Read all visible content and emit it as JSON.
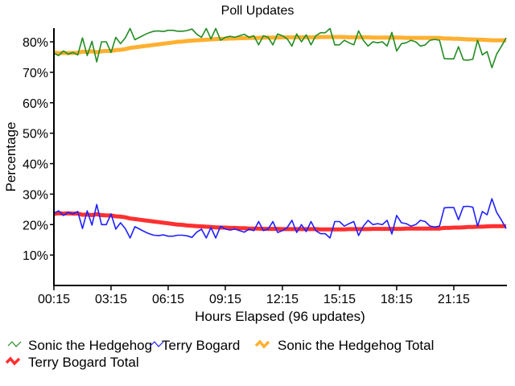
{
  "chart_data": {
    "type": "line",
    "title": "Poll Updates",
    "xlabel": "Hours Elapsed (96 updates)",
    "ylabel": "Percentage",
    "ylim": [
      0,
      84.5
    ],
    "yticks": [
      10,
      20,
      30,
      40,
      50,
      60,
      70,
      80
    ],
    "ytick_labels": [
      "10%",
      "20%",
      "30%",
      "40%",
      "50%",
      "60%",
      "70%",
      "80%"
    ],
    "xtick_labels": [
      "00:15",
      "03:15",
      "06:15",
      "09:15",
      "12:15",
      "15:15",
      "18:15",
      "21:15"
    ],
    "xtick_update_index": [
      0,
      12,
      24,
      36,
      48,
      60,
      72,
      84
    ],
    "grid": false,
    "legend_placement": "bottom",
    "series": [
      {
        "name": "Sonic the Hedgehog",
        "color": "#228B22",
        "values": [
          76.3,
          75.5,
          77,
          76,
          76.5,
          75.7,
          81.3,
          75.5,
          80.2,
          73.4,
          80,
          80,
          76.5,
          81.5,
          79.4,
          81.3,
          84.4,
          80.7,
          81.5,
          82.3,
          83,
          83.5,
          83.6,
          83.4,
          83.8,
          83.8,
          83.5,
          83.5,
          83.7,
          84.2,
          82.5,
          81.5,
          84.4,
          81,
          84.4,
          80.5,
          81.5,
          81.8,
          81.5,
          82,
          82.5,
          81.5,
          82,
          79,
          82,
          81.5,
          79,
          82.6,
          82,
          81,
          78.6,
          82.6,
          80,
          82.3,
          79,
          82,
          83,
          83,
          84.4,
          79,
          79,
          80.5,
          79.7,
          79,
          83.6,
          80.5,
          78.6,
          80,
          79.7,
          80,
          78.6,
          83.1,
          77,
          79.4,
          79.7,
          80.5,
          80,
          78.6,
          79,
          80.5,
          80.8,
          80.5,
          74.5,
          74.4,
          74.4,
          78.4,
          74.1,
          74,
          74.3,
          80.5,
          75.7,
          76.8,
          71.5,
          76,
          78.5,
          81.3
        ]
      },
      {
        "name": "Terry Bogard",
        "color": "#2020FF",
        "values": [
          23.7,
          24.5,
          23,
          24,
          23.5,
          24.3,
          18.7,
          24.5,
          19.8,
          26.6,
          20,
          20,
          23.5,
          18.5,
          20.6,
          18.7,
          15.6,
          19.3,
          18.5,
          17.7,
          17,
          16.5,
          16.4,
          16.6,
          16.2,
          16.2,
          16.5,
          16.5,
          16.3,
          15.8,
          17.5,
          18.5,
          15.6,
          19,
          15.6,
          19.5,
          18.5,
          18.2,
          18.5,
          18,
          17.5,
          18.5,
          18,
          21,
          18,
          18.5,
          21,
          17.4,
          18,
          19,
          21.4,
          17.4,
          20,
          17.7,
          21,
          18,
          17,
          17,
          15.6,
          21,
          21,
          19.5,
          20.3,
          21,
          16.4,
          19.5,
          21.4,
          20,
          20.3,
          20,
          21.4,
          16.9,
          23,
          20.6,
          20.3,
          19.5,
          20,
          21.4,
          21,
          19.5,
          19.2,
          19.5,
          25.5,
          25.6,
          25.6,
          21.6,
          25.9,
          26,
          25.7,
          19.5,
          24.3,
          23.2,
          28.5,
          24,
          21.5,
          18.7
        ]
      },
      {
        "name": "Sonic the Hedgehog Total",
        "color": "#FFB030",
        "values": [
          76.5,
          76.3,
          76.4,
          76.3,
          76.4,
          76.4,
          76.8,
          76.7,
          76.9,
          76.6,
          76.9,
          77.0,
          77.0,
          77.3,
          77.4,
          77.6,
          78.0,
          78.2,
          78.4,
          78.6,
          78.8,
          79.0,
          79.2,
          79.4,
          79.6,
          79.8,
          80.0,
          80.1,
          80.3,
          80.4,
          80.5,
          80.6,
          80.7,
          80.8,
          80.9,
          81.0,
          81.0,
          81.1,
          81.1,
          81.2,
          81.2,
          81.3,
          81.3,
          81.3,
          81.4,
          81.4,
          81.4,
          81.4,
          81.5,
          81.5,
          81.5,
          81.5,
          81.5,
          81.5,
          81.5,
          81.5,
          81.6,
          81.6,
          81.6,
          81.6,
          81.6,
          81.6,
          81.5,
          81.5,
          81.5,
          81.5,
          81.5,
          81.4,
          81.4,
          81.4,
          81.4,
          81.4,
          81.4,
          81.4,
          81.3,
          81.3,
          81.3,
          81.3,
          81.3,
          81.3,
          81.3,
          81.3,
          81.1,
          81.1,
          81.0,
          81.0,
          80.9,
          80.8,
          80.8,
          80.7,
          80.7,
          80.6,
          80.5,
          80.5,
          80.5,
          80.5
        ]
      },
      {
        "name": "Terry Bogard Total",
        "color": "#FF3030",
        "values": [
          23.5,
          23.7,
          23.6,
          23.7,
          23.6,
          23.6,
          23.2,
          23.3,
          23.1,
          23.4,
          23.1,
          23.0,
          23.0,
          22.7,
          22.6,
          22.4,
          22.0,
          21.8,
          21.6,
          21.4,
          21.2,
          21.0,
          20.8,
          20.6,
          20.4,
          20.2,
          20.0,
          19.9,
          19.7,
          19.6,
          19.5,
          19.4,
          19.3,
          19.2,
          19.1,
          19.0,
          19.0,
          18.9,
          18.9,
          18.8,
          18.8,
          18.7,
          18.7,
          18.7,
          18.6,
          18.6,
          18.6,
          18.6,
          18.5,
          18.5,
          18.5,
          18.5,
          18.5,
          18.5,
          18.5,
          18.5,
          18.4,
          18.4,
          18.4,
          18.4,
          18.4,
          18.4,
          18.5,
          18.5,
          18.5,
          18.5,
          18.5,
          18.6,
          18.6,
          18.6,
          18.6,
          18.6,
          18.6,
          18.6,
          18.7,
          18.7,
          18.7,
          18.7,
          18.7,
          18.7,
          18.7,
          18.7,
          18.9,
          18.9,
          19.0,
          19.0,
          19.1,
          19.2,
          19.2,
          19.3,
          19.3,
          19.4,
          19.5,
          19.5,
          19.5,
          19.5
        ]
      }
    ]
  }
}
